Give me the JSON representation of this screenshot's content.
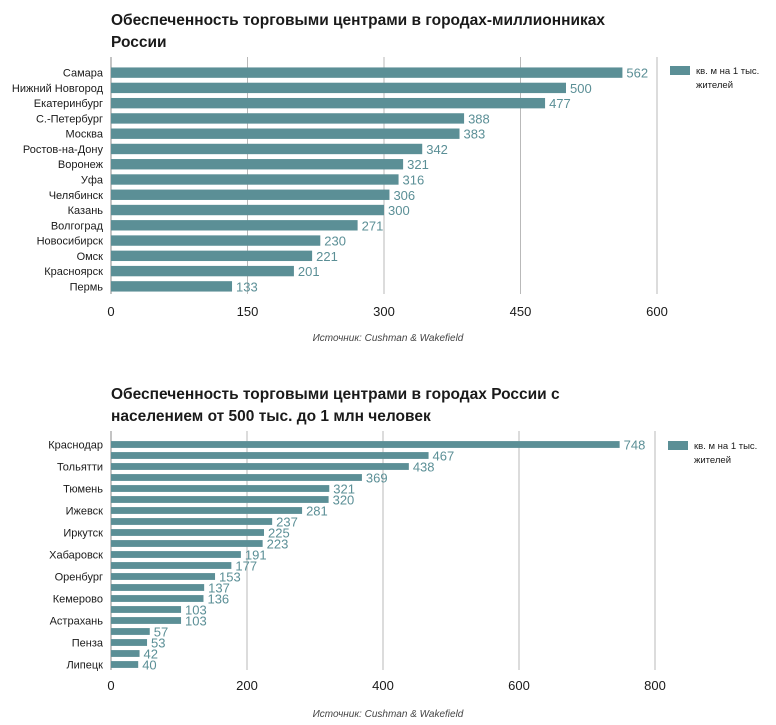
{
  "bar_color": "#5b8f96",
  "value_label_color": "#5b8f96",
  "charts": [
    {
      "title_line1": "Обеспеченность торговыми центрами в городах-миллионниках",
      "title_line2": "России",
      "source": "Источник: Cushman & Wakefield",
      "legend_label_line1": "кв. м на 1 тыс.",
      "legend_label_line2": "жителей"
    },
    {
      "title_line1": "Обеспеченность торговыми центрами в городах России с",
      "title_line2": "населением от 500 тыс. до 1 млн человек",
      "source": "Источник: Cushman & Wakefield",
      "legend_label_line1": "кв. м на 1 тыс.",
      "legend_label_line2": "жителей"
    }
  ],
  "chart_data": [
    {
      "type": "bar",
      "orientation": "horizontal",
      "title": "Обеспеченность торговыми центрами в городах-миллионниках России",
      "categories": [
        "Самара",
        "Нижний Новгород",
        "Екатеринбург",
        "С.-Петербург",
        "Москва",
        "Ростов-на-Дону",
        "Воронеж",
        "Уфа",
        "Челябинск",
        "Казань",
        "Волгоград",
        "Новосибирск",
        "Омск",
        "Красноярск",
        "Пермь"
      ],
      "series": [
        {
          "name": "кв. м на 1 тыс. жителей",
          "values": [
            562,
            500,
            477,
            388,
            383,
            342,
            321,
            316,
            306,
            300,
            271,
            230,
            221,
            201,
            133
          ]
        }
      ],
      "xlim": [
        0,
        600
      ],
      "xticks": [
        0,
        150,
        300,
        450,
        600
      ],
      "grid": "vertical",
      "legend_position": "top-right",
      "source": "Источник: Cushman & Wakefield"
    },
    {
      "type": "bar",
      "orientation": "horizontal",
      "title": "Обеспеченность торговыми центрами в городах России с населением от 500 тыс. до 1 млн человек",
      "categories": [
        "Краснодар",
        "",
        "Тольятти",
        "",
        "Тюмень",
        "",
        "Ижевск",
        "",
        "Иркутск",
        "",
        "Хабаровск",
        "",
        "Оренбург",
        "",
        "Кемерово",
        "",
        "Астрахань",
        "",
        "Пенза",
        "",
        "Липецк"
      ],
      "series": [
        {
          "name": "кв. м на 1 тыс. жителей",
          "values": [
            748,
            467,
            438,
            369,
            321,
            320,
            281,
            237,
            225,
            223,
            191,
            177,
            153,
            137,
            136,
            103,
            103,
            57,
            53,
            42,
            40
          ]
        }
      ],
      "xlim": [
        0,
        800
      ],
      "xticks": [
        0,
        200,
        400,
        600,
        800
      ],
      "grid": "vertical",
      "legend_position": "top-right",
      "source": "Источник: Cushman & Wakefield"
    }
  ]
}
